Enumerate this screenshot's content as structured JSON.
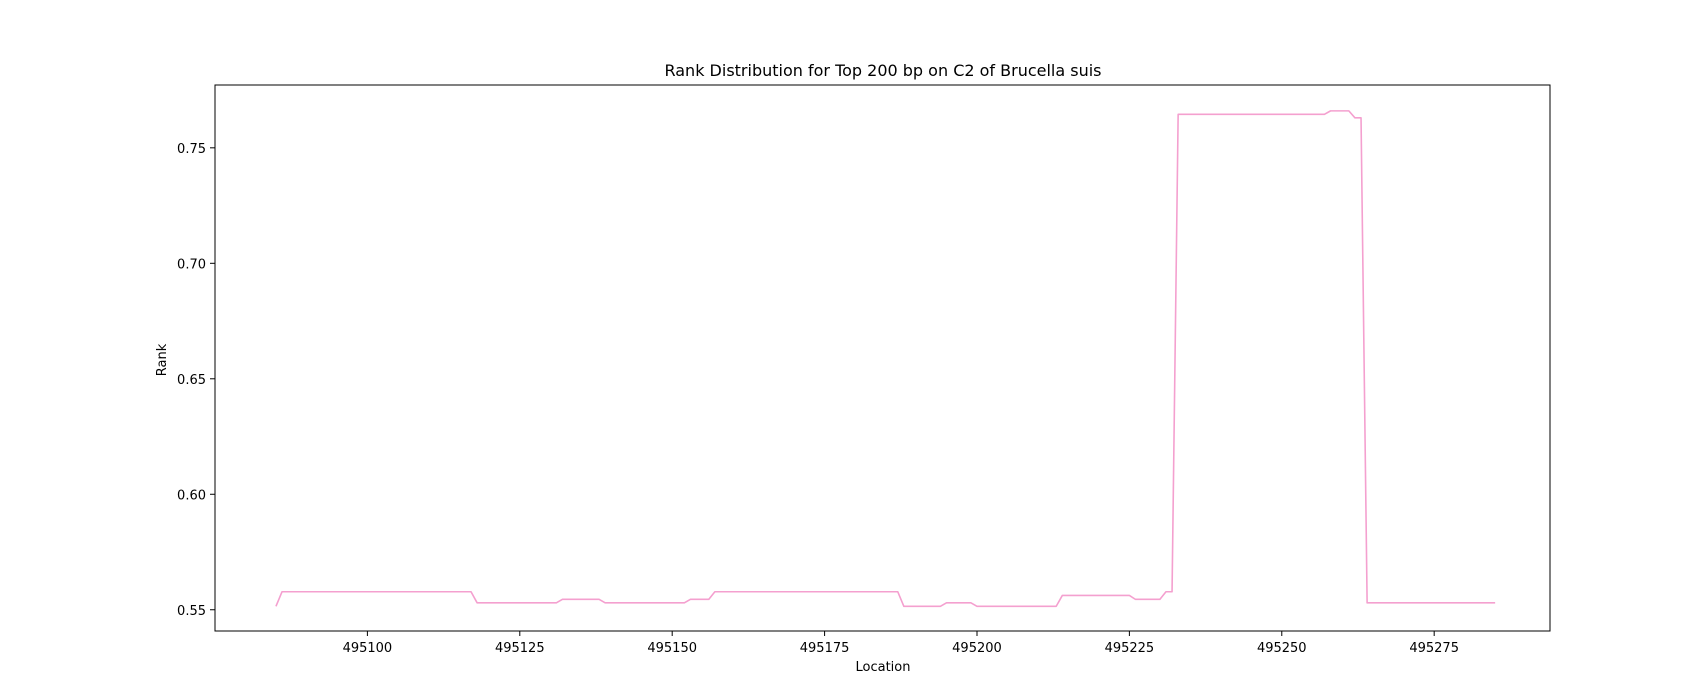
{
  "chart_data": {
    "type": "line",
    "title": "Rank Distribution for Top 200 bp on C2 of Brucella suis",
    "xlabel": "Location",
    "ylabel": "Rank",
    "xlim": [
      495075,
      495294
    ],
    "ylim": [
      0.5408,
      0.7772
    ],
    "xticks": [
      495100,
      495125,
      495150,
      495175,
      495200,
      495225,
      495250,
      495275
    ],
    "xtick_labels": [
      "495100",
      "495125",
      "495150",
      "495175",
      "495200",
      "495225",
      "495250",
      "495275"
    ],
    "yticks": [
      0.55,
      0.6,
      0.65,
      0.7,
      0.75
    ],
    "ytick_labels": [
      "0.55",
      "0.60",
      "0.65",
      "0.70",
      "0.75"
    ],
    "grid": false,
    "legend": "none",
    "series": [
      {
        "color": "#f4a0cf",
        "points": [
          [
            495085,
            0.5515
          ],
          [
            495086,
            0.5578
          ],
          [
            495117,
            0.5578
          ],
          [
            495118,
            0.553
          ],
          [
            495131,
            0.553
          ],
          [
            495132,
            0.5545
          ],
          [
            495138,
            0.5545
          ],
          [
            495139,
            0.553
          ],
          [
            495152,
            0.553
          ],
          [
            495153,
            0.5545
          ],
          [
            495156,
            0.5545
          ],
          [
            495157,
            0.5578
          ],
          [
            495187,
            0.5578
          ],
          [
            495188,
            0.5515
          ],
          [
            495194,
            0.5515
          ],
          [
            495195,
            0.553
          ],
          [
            495199,
            0.553
          ],
          [
            495200,
            0.5515
          ],
          [
            495213,
            0.5515
          ],
          [
            495214,
            0.5562
          ],
          [
            495225,
            0.5562
          ],
          [
            495226,
            0.5545
          ],
          [
            495230,
            0.5545
          ],
          [
            495231,
            0.5578
          ],
          [
            495232,
            0.5578
          ],
          [
            495233,
            0.7645
          ],
          [
            495257,
            0.7645
          ],
          [
            495258,
            0.766
          ],
          [
            495261,
            0.766
          ],
          [
            495262,
            0.763
          ],
          [
            495263,
            0.763
          ],
          [
            495264,
            0.553
          ],
          [
            495285,
            0.553
          ]
        ]
      }
    ]
  }
}
